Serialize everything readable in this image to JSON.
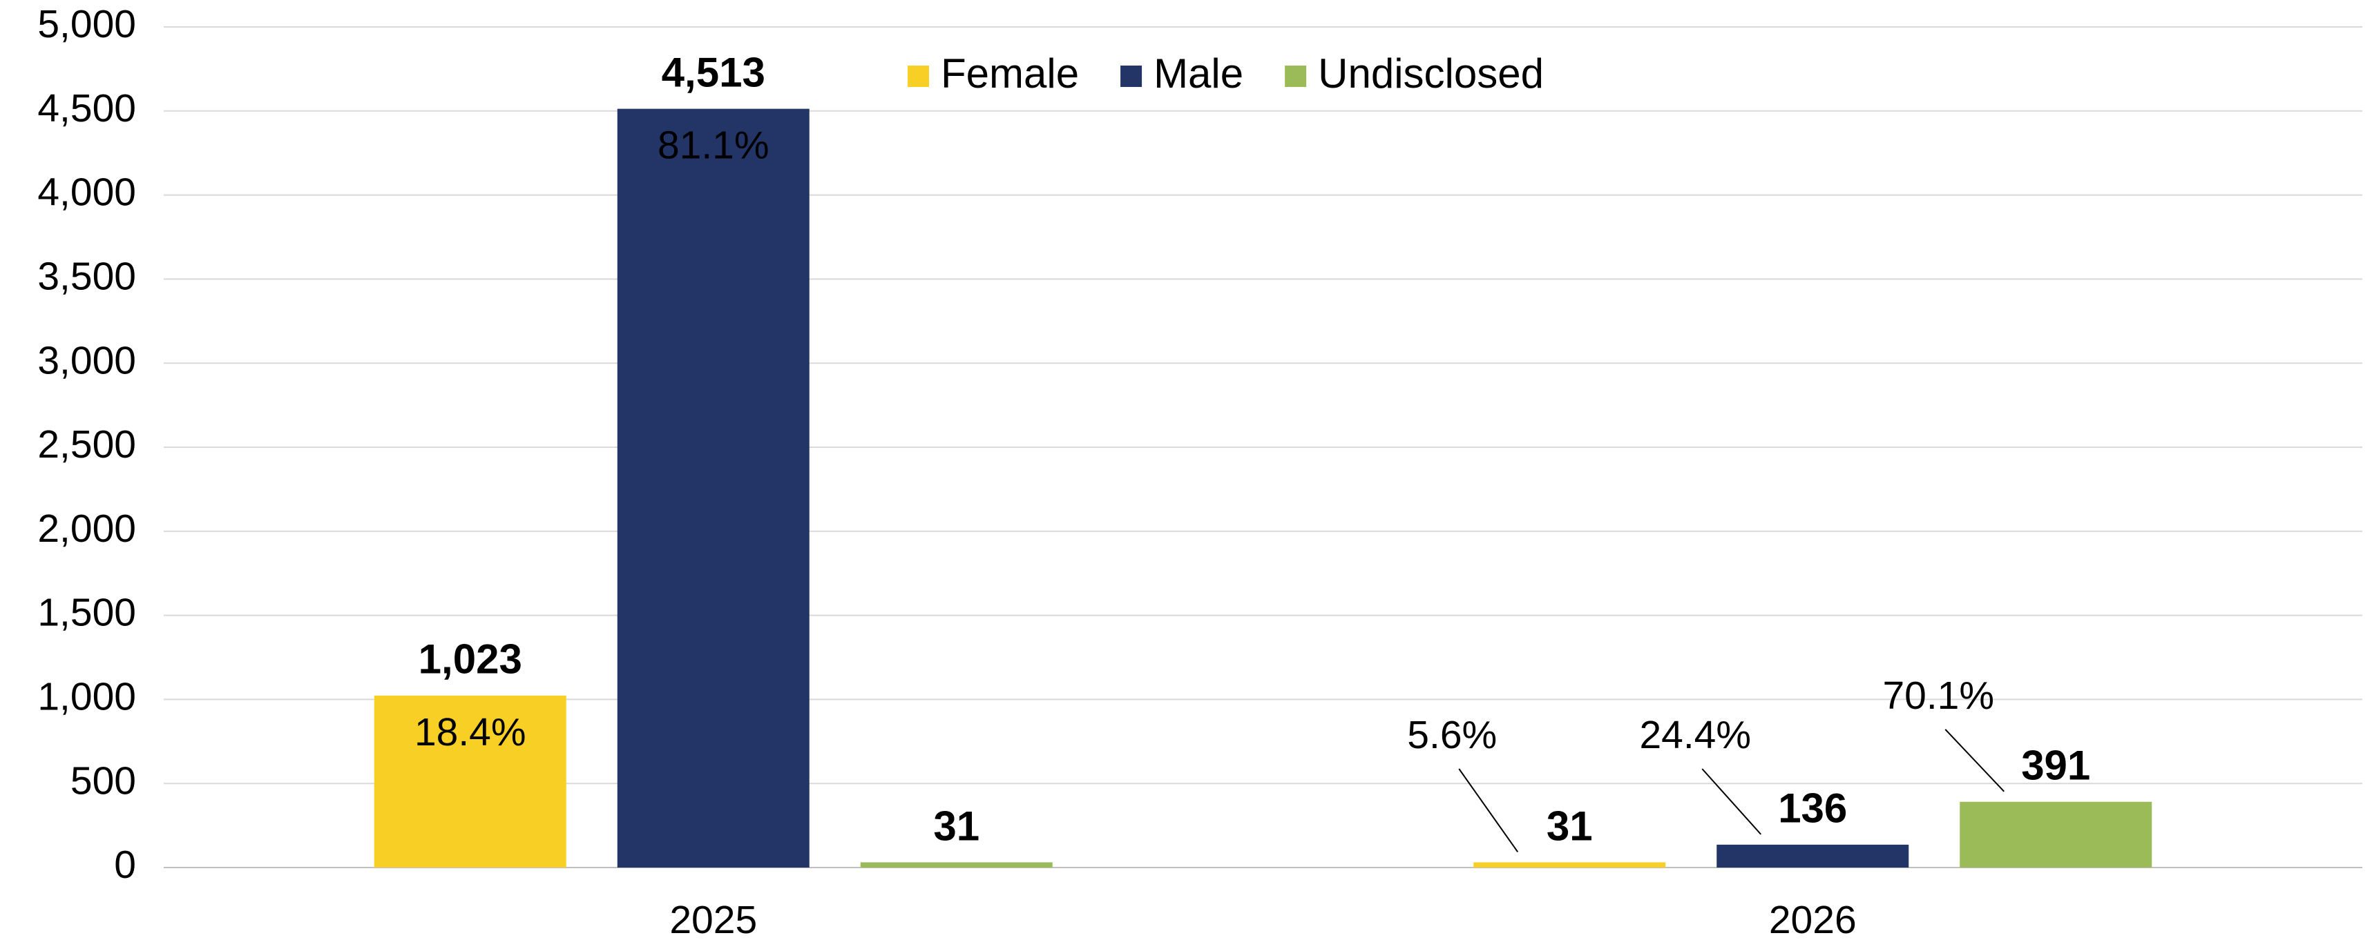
{
  "chart_data": {
    "type": "bar",
    "categories": [
      "2025",
      "2026"
    ],
    "series": [
      {
        "name": "Female",
        "color": "#f8cf24",
        "values": [
          1023,
          31
        ],
        "value_labels": [
          "1,023",
          "31"
        ],
        "share_labels": [
          "18.4%",
          "5.6%"
        ]
      },
      {
        "name": "Male",
        "color": "#233466",
        "values": [
          4513,
          136
        ],
        "value_labels": [
          "4,513",
          "136"
        ],
        "share_labels": [
          "81.1%",
          "24.4%"
        ]
      },
      {
        "name": "Undisclosed",
        "color": "#9bbb59",
        "values": [
          31,
          391
        ],
        "value_labels": [
          "31",
          "391"
        ],
        "share_labels": [
          null,
          "70.1%"
        ]
      }
    ],
    "ylim": [
      0,
      5000
    ],
    "yticks": [
      0,
      500,
      {
        "value": 1000,
        "label": "1,000"
      },
      {
        "value": 1500,
        "label": "1,500"
      },
      {
        "value": 2000,
        "label": "2,000"
      },
      {
        "value": 2500,
        "label": "2,500"
      },
      {
        "value": 3000,
        "label": "3,000"
      },
      {
        "value": 3500,
        "label": "3,500"
      },
      {
        "value": 4000,
        "label": "4,000"
      },
      {
        "value": 4500,
        "label": "4,500"
      },
      {
        "value": 5000,
        "label": "5,000"
      }
    ],
    "grid": true,
    "legend": "top"
  }
}
